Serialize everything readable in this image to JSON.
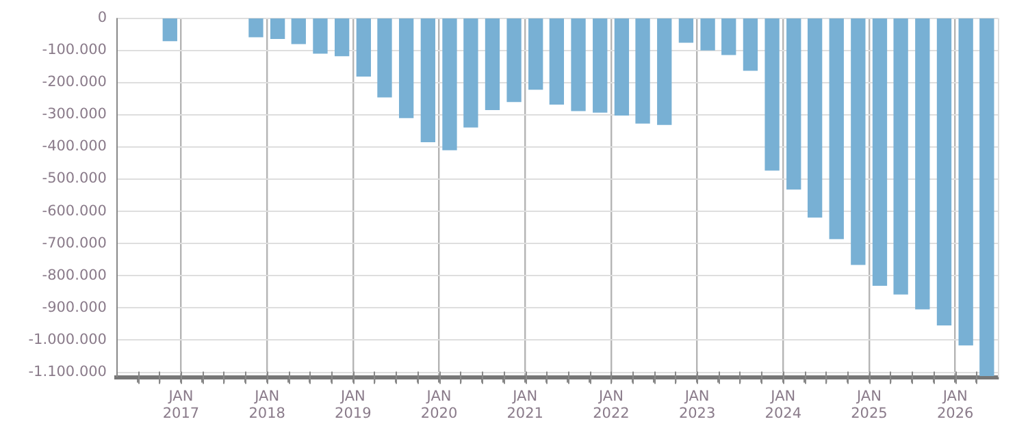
{
  "chart_data": {
    "type": "bar",
    "x": [
      "2016-11-15",
      "2017-11-15",
      "2018-02-15",
      "2018-05-15",
      "2018-08-15",
      "2018-11-15",
      "2019-02-15",
      "2019-05-15",
      "2019-08-15",
      "2019-11-15",
      "2020-02-15",
      "2020-05-15",
      "2020-08-15",
      "2020-11-15",
      "2021-02-15",
      "2021-05-15",
      "2021-08-15",
      "2021-11-15",
      "2022-02-15",
      "2022-05-15",
      "2022-08-15",
      "2022-11-15",
      "2023-02-15",
      "2023-05-15",
      "2023-08-15",
      "2023-11-15",
      "2024-02-15",
      "2024-05-15",
      "2024-08-15",
      "2024-11-15",
      "2025-02-15",
      "2025-05-15",
      "2025-08-15",
      "2025-11-15",
      "2026-02-15",
      "2026-05-15"
    ],
    "values": [
      -70000,
      -58000,
      -63000,
      -79000,
      -109000,
      -117000,
      -180000,
      -245000,
      -309000,
      -384000,
      -409000,
      -338000,
      -284000,
      -259000,
      -221000,
      -267000,
      -287000,
      -292000,
      -301000,
      -326000,
      -330000,
      -75000,
      -99000,
      -113000,
      -162000,
      -472000,
      -531000,
      -618000,
      -685000,
      -765000,
      -830000,
      -857000,
      -903000,
      -953000,
      -1015000,
      -1110000
    ],
    "color": "#78b0d4",
    "ylim": [
      -1115000,
      0
    ],
    "yticks": [
      {
        "value": -1100000,
        "label": "-1.100.000"
      },
      {
        "value": -1000000,
        "label": "-1.000.000"
      },
      {
        "value": -900000,
        "label": "-900.000"
      },
      {
        "value": -800000,
        "label": "-800.000"
      },
      {
        "value": -700000,
        "label": "-700.000"
      },
      {
        "value": -600000,
        "label": "-600.000"
      },
      {
        "value": -500000,
        "label": "-500.000"
      },
      {
        "value": -400000,
        "label": "-400.000"
      },
      {
        "value": -300000,
        "label": "-300.000"
      },
      {
        "value": -200000,
        "label": "-200.000"
      },
      {
        "value": -100000,
        "label": "-100.000"
      },
      0
    ],
    "xlim": [
      "2016-04-01",
      "2026-07-01"
    ],
    "xticks": [
      {
        "value": "2016-07",
        "label": null
      },
      {
        "value": "2016-10",
        "label": null
      },
      {
        "value": "2017-01",
        "label": "JAN\n2017"
      },
      {
        "value": "2017-04",
        "label": null
      },
      {
        "value": "2017-07",
        "label": null
      },
      {
        "value": "2017-10",
        "label": null
      },
      {
        "value": "2018-01",
        "label": "JAN\n2018"
      },
      {
        "value": "2018-04",
        "label": null
      },
      {
        "value": "2018-07",
        "label": null
      },
      {
        "value": "2018-10",
        "label": null
      },
      {
        "value": "2019-01",
        "label": "JAN\n2019"
      },
      {
        "value": "2019-04",
        "label": null
      },
      {
        "value": "2019-07",
        "label": null
      },
      {
        "value": "2019-10",
        "label": null
      },
      {
        "value": "2020-01",
        "label": "JAN\n2020"
      },
      {
        "value": "2020-04",
        "label": null
      },
      {
        "value": "2020-07",
        "label": null
      },
      {
        "value": "2020-10",
        "label": null
      },
      {
        "value": "2021-01",
        "label": "JAN\n2021"
      },
      {
        "value": "2021-04",
        "label": null
      },
      {
        "value": "2021-07",
        "label": null
      },
      {
        "value": "2021-10",
        "label": null
      },
      {
        "value": "2022-01",
        "label": "JAN\n2022"
      },
      {
        "value": "2022-04",
        "label": null
      },
      {
        "value": "2022-07",
        "label": null
      },
      {
        "value": "2022-10",
        "label": null
      },
      {
        "value": "2023-01",
        "label": "JAN\n2023"
      },
      {
        "value": "2023-04",
        "label": null
      },
      {
        "value": "2023-07",
        "label": null
      },
      {
        "value": "2023-10",
        "label": null
      },
      {
        "value": "2024-01",
        "label": "JAN\n2024"
      },
      {
        "value": "2024-04",
        "label": null
      },
      {
        "value": "2024-07",
        "label": null
      },
      {
        "value": "2024-10",
        "label": null
      },
      {
        "value": "2025-01",
        "label": "JAN\n2025"
      },
      {
        "value": "2025-04",
        "label": null
      },
      {
        "value": "2025-07",
        "label": null
      },
      {
        "value": "2025-10",
        "label": null
      },
      {
        "value": "2026-01",
        "label": "JAN\n2026"
      },
      {
        "value": "2026-04",
        "label": null
      }
    ],
    "grid": true,
    "legend": false
  }
}
